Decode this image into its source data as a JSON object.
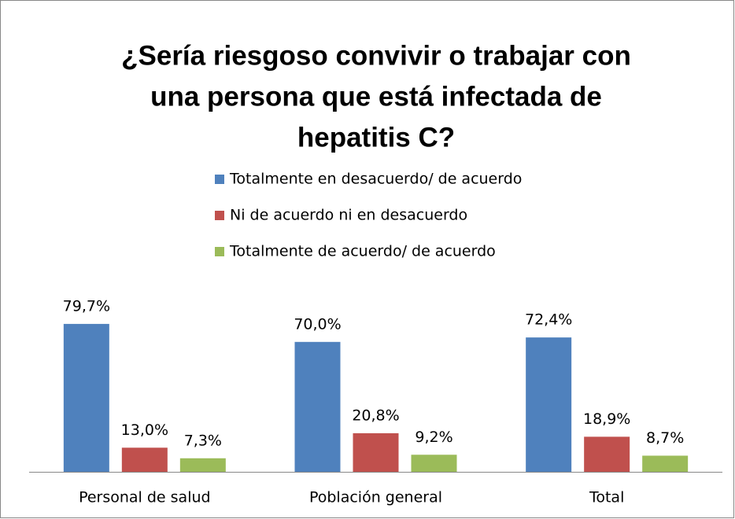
{
  "chart_data": {
    "type": "bar",
    "title": [
      "¿Sería riesgoso convivir o trabajar con",
      "una persona que está infectada de",
      "hepatitis C?"
    ],
    "categories": [
      "Personal de salud",
      "Población general",
      "Total"
    ],
    "series": [
      {
        "name": "Totalmente en desacuerdo/ de acuerdo",
        "color": "#4f81bd",
        "values": [
          79.7,
          70.0,
          72.4
        ],
        "value_labels": [
          "79,7%",
          "70,0%",
          "72,4%"
        ]
      },
      {
        "name": "Ni de acuerdo ni en desacuerdo",
        "color": "#c0504d",
        "values": [
          13.0,
          20.8,
          18.9
        ],
        "value_labels": [
          "13,0%",
          "20,8%",
          "18,9%"
        ]
      },
      {
        "name": "Totalmente de acuerdo/ de acuerdo",
        "color": "#9bbb59",
        "values": [
          7.3,
          9.2,
          8.7
        ],
        "value_labels": [
          "7,3%",
          "9,2%",
          "8,7%"
        ]
      }
    ],
    "legend": "top"
  }
}
